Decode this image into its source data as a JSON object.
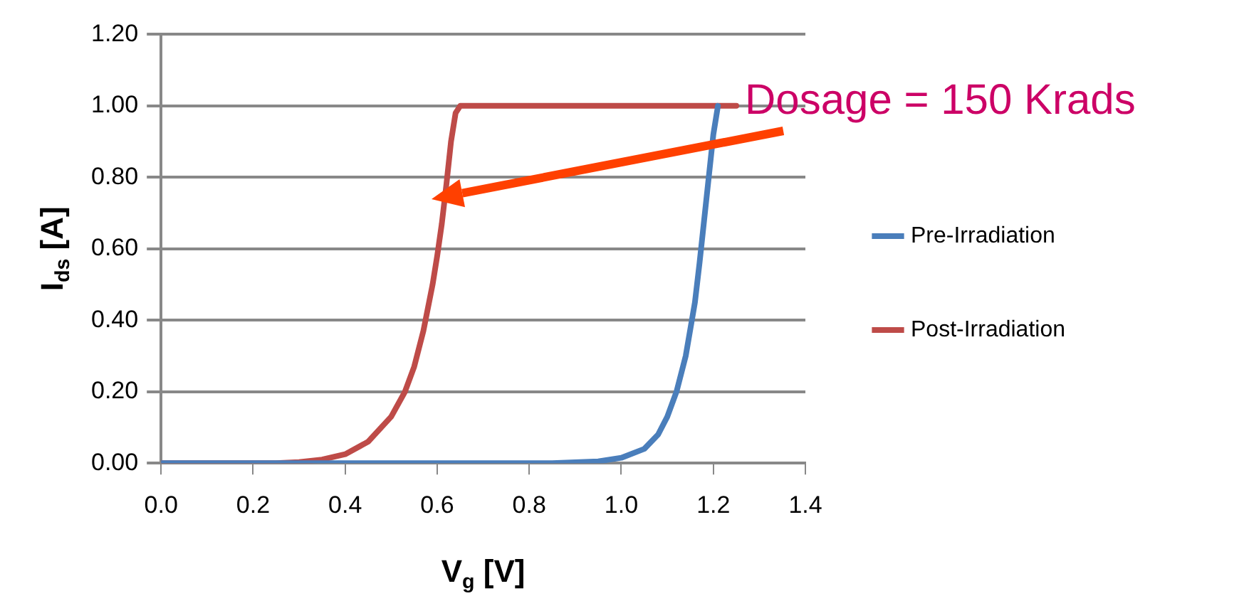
{
  "chart_data": {
    "type": "line",
    "xlabel": "V$_{g}$ [V]",
    "ylabel": "I$_{ds}$ [A]",
    "xlim": [
      0,
      1.4
    ],
    "xticks": [
      {
        "value": 0,
        "label": "0.0"
      },
      {
        "value": 0.2,
        "label": "0.2"
      },
      {
        "value": 0.4,
        "label": "0.4"
      },
      {
        "value": 0.6,
        "label": "0.6"
      },
      {
        "value": 0.8,
        "label": "0.8"
      },
      {
        "value": 1,
        "label": "1.0"
      },
      {
        "value": 1.2,
        "label": "1.2"
      },
      {
        "value": 1.4,
        "label": "1.4"
      }
    ],
    "ylim": [
      0,
      1.2
    ],
    "yticks": [
      {
        "value": 0,
        "label": "0.00"
      },
      {
        "value": 0.2,
        "label": "0.20"
      },
      {
        "value": 0.4,
        "label": "0.40"
      },
      {
        "value": 0.6,
        "label": "0.60"
      },
      {
        "value": 0.8,
        "label": "0.80"
      },
      {
        "value": 1,
        "label": "1.00"
      },
      {
        "value": 1.2,
        "label": "1.20"
      }
    ],
    "series": [
      {
        "name": "Pre-Irradiation",
        "color": "#4a7ebb",
        "x": [
          0,
          0.3,
          0.6,
          0.85,
          0.95,
          1.0,
          1.05,
          1.08,
          1.1,
          1.12,
          1.14,
          1.16,
          1.17,
          1.18,
          1.19,
          1.2,
          1.21
        ],
        "values": [
          0,
          0,
          0,
          0,
          0.005,
          0.015,
          0.04,
          0.08,
          0.13,
          0.2,
          0.3,
          0.45,
          0.56,
          0.68,
          0.8,
          0.92,
          1.0
        ]
      },
      {
        "name": "Post-Irradiation",
        "color": "#be4b48",
        "x": [
          0,
          0.25,
          0.3,
          0.35,
          0.4,
          0.45,
          0.5,
          0.53,
          0.55,
          0.57,
          0.59,
          0.6,
          0.61,
          0.62,
          0.63,
          0.64,
          0.65,
          1.25
        ],
        "values": [
          0,
          0,
          0.003,
          0.01,
          0.025,
          0.06,
          0.13,
          0.2,
          0.27,
          0.37,
          0.5,
          0.58,
          0.67,
          0.78,
          0.9,
          0.98,
          1.0,
          1.0
        ]
      }
    ],
    "annotations": [
      "Dosage = 150 Krads"
    ],
    "grid": "y",
    "legend": "right",
    "marker": "none",
    "line_style": "solid"
  }
}
